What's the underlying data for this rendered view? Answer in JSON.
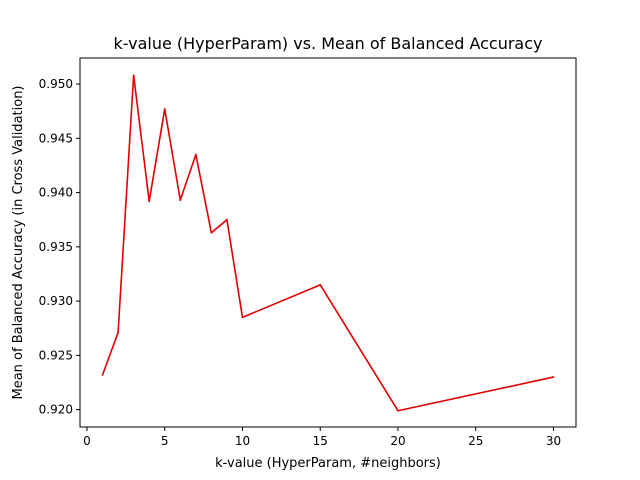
{
  "chart_data": {
    "type": "line",
    "title": "k-value (HyperParam) vs. Mean of Balanced Accuracy",
    "xlabel": "k-value (HyperParam, #neighbors)",
    "ylabel": "Mean of Balanced Accuracy (in Cross Validation)",
    "xlim": [
      -0.45,
      31.45
    ],
    "ylim": [
      0.9184,
      0.9524
    ],
    "xticks": [
      0,
      5,
      10,
      15,
      20,
      25,
      30
    ],
    "xtick_labels": [
      "0",
      "5",
      "10",
      "15",
      "20",
      "25",
      "30"
    ],
    "yticks": [
      0.92,
      0.925,
      0.93,
      0.935,
      0.94,
      0.945,
      0.95
    ],
    "ytick_labels": [
      "0.920",
      "0.925",
      "0.930",
      "0.935",
      "0.940",
      "0.945",
      "0.950"
    ],
    "grid": false,
    "series": [
      {
        "color": "#e00000",
        "x": [
          1,
          2,
          3,
          4,
          5,
          6,
          7,
          8,
          9,
          10,
          15,
          20,
          30
        ],
        "y": [
          0.9232,
          0.9271,
          0.9508,
          0.9392,
          0.9477,
          0.9393,
          0.9435,
          0.9363,
          0.9375,
          0.9285,
          0.9315,
          0.9199,
          0.923
        ]
      }
    ]
  }
}
